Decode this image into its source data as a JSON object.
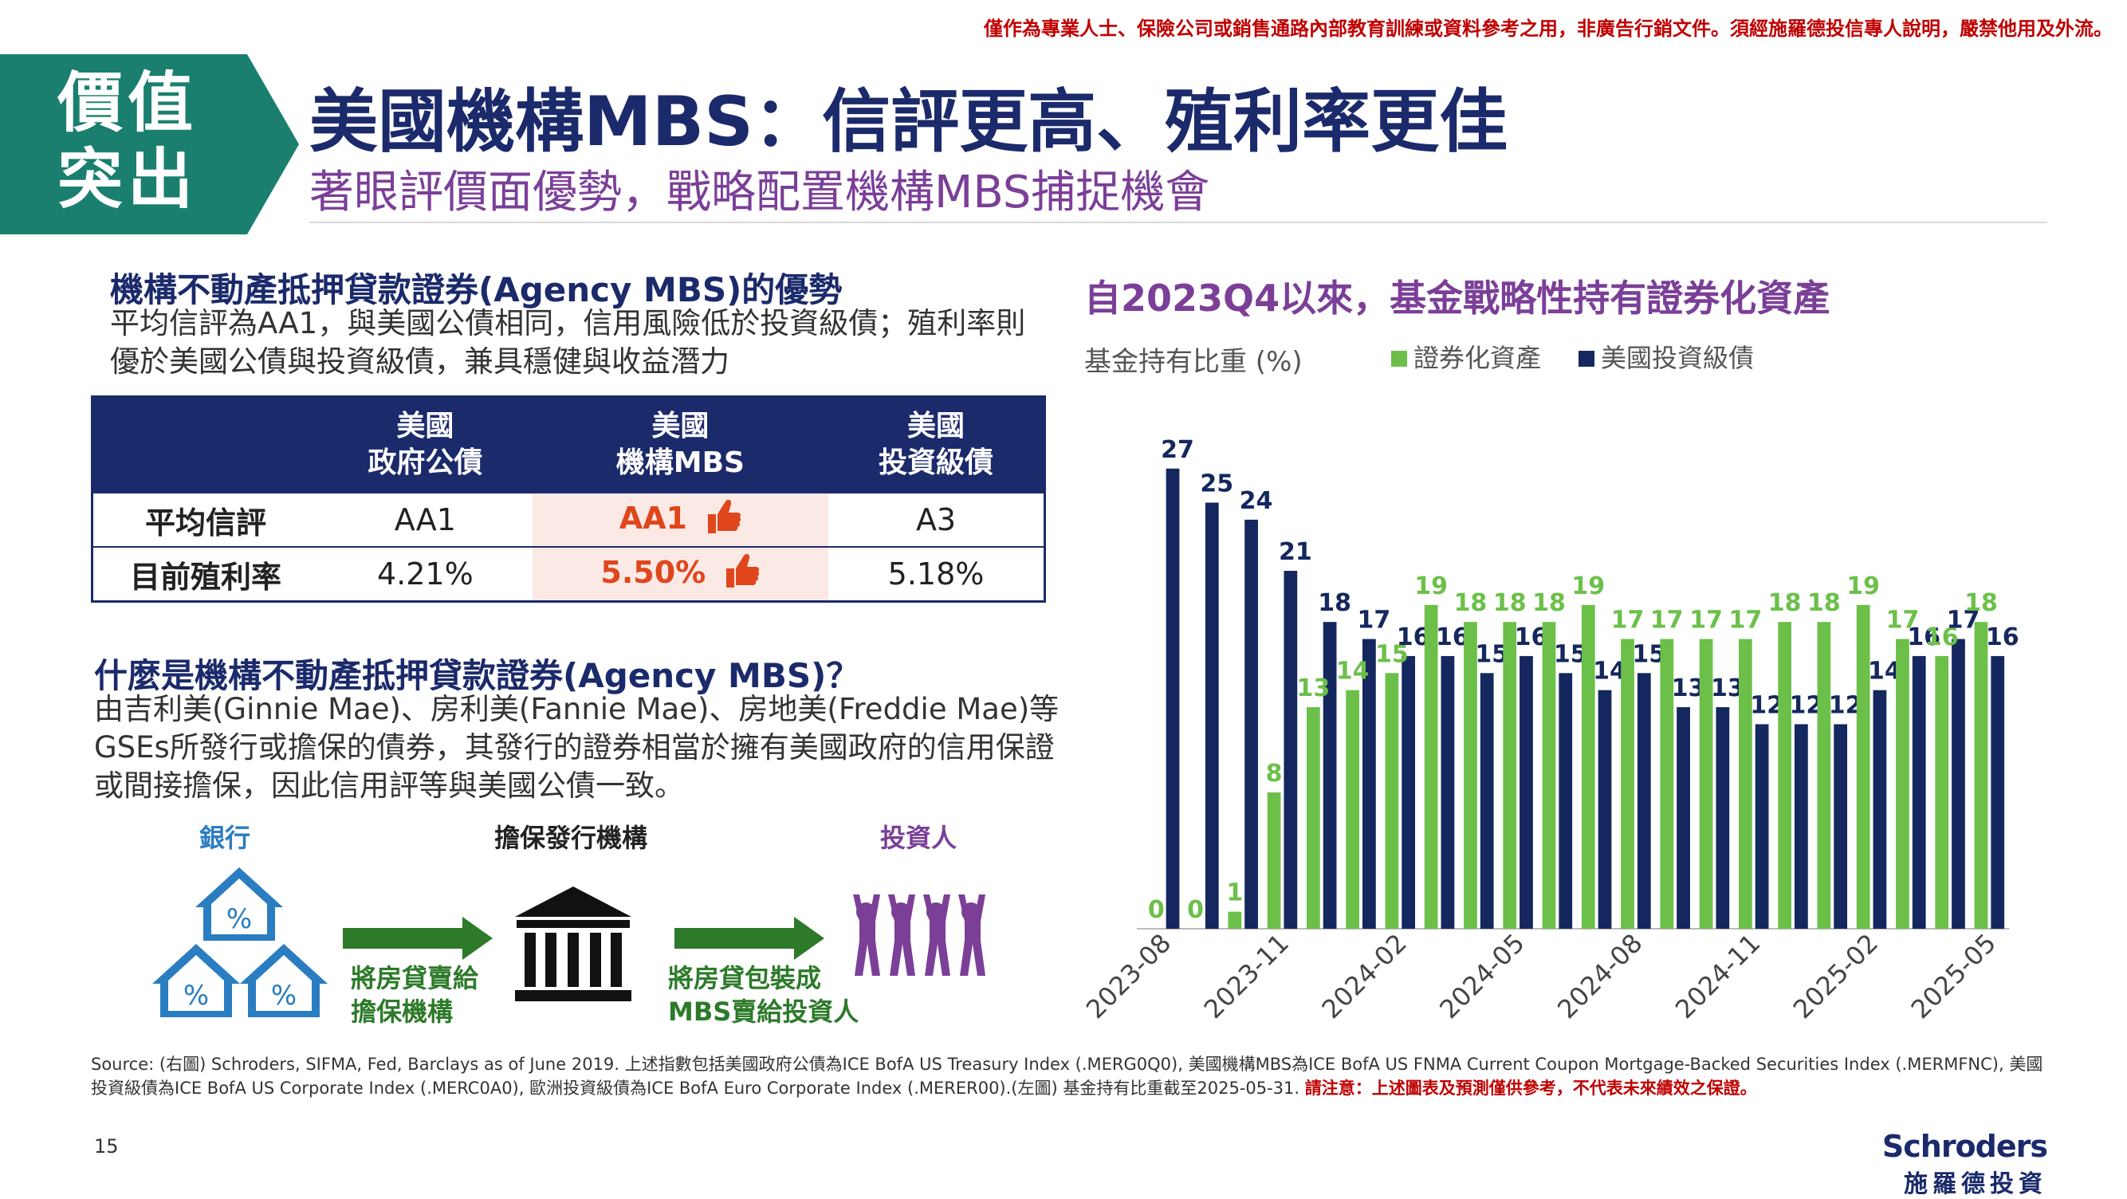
{
  "disclaimer": "僅作為專業人士、保險公司或銷售通路內部教育訓練或資料參考之用，非廣告行銷文件。須經施羅德投信專人說明，嚴禁他用及外流。",
  "badge": {
    "line1": "價值",
    "line2": "突出"
  },
  "title": "美國機構MBS：信評更高、殖利率更佳",
  "subtitle": "著眼評價面優勢，戰略配置機構MBS捕捉機會",
  "advantage": {
    "heading": "機構不動產抵押貸款證券(Agency MBS)的優勢",
    "description": "平均信評為AA1，與美國公債相同，信用風險低於投資級債；殖利率則優於美國公債與投資級債，兼具穩健與收益潛力"
  },
  "table": {
    "columns": [
      {
        "line1": "美國",
        "line2": "政府公債"
      },
      {
        "line1": "美國",
        "line2": "機構MBS"
      },
      {
        "line1": "美國",
        "line2": "投資級債"
      }
    ],
    "rows": [
      {
        "label": "平均信評",
        "values": [
          "AA1",
          "AA1",
          "A3"
        ]
      },
      {
        "label": "目前殖利率",
        "values": [
          "4.21%",
          "5.50%",
          "5.18%"
        ]
      }
    ],
    "highlight_color": "#e0461c"
  },
  "what": {
    "heading": "什麼是機構不動產抵押貸款證券(Agency MBS)？",
    "description": "由吉利美(Ginnie Mae)、房利美(Fannie Mae)、房地美(Freddie Mae)等GSEs所發行或擔保的債券，其發行的證券相當於擁有美國政府的信用保證或間接擔保，因此信用評等與美國公債一致。"
  },
  "flow": {
    "bank_label": "銀行",
    "issuer_label": "擔保發行機構",
    "investor_label": "投資人",
    "arrow1": {
      "line1": "將房貸賣給",
      "line2": "擔保機構"
    },
    "arrow2": {
      "line1": "將房貸包裝成",
      "line2": "MBS賣給投資人"
    },
    "percent_symbol": "%"
  },
  "chart_title": "自2023Q4以來，基金戰略性持有證券化資產",
  "chart_data": {
    "type": "bar",
    "ylabel": "基金持有比重 (%)",
    "ylim": [
      0,
      29
    ],
    "grid": false,
    "legend_position": "top",
    "x_tick_labels": [
      "2023-08",
      "2023-11",
      "2024-02",
      "2024-05",
      "2024-08",
      "2024-11",
      "2025-02",
      "2025-05"
    ],
    "categories": [
      "2023-08",
      "2023-09",
      "2023-10",
      "2023-11",
      "2023-12",
      "2024-01",
      "2024-02",
      "2024-03",
      "2024-04",
      "2024-05",
      "2024-06",
      "2024-07",
      "2024-08",
      "2024-09",
      "2024-10",
      "2024-11",
      "2024-12",
      "2025-01",
      "2025-02",
      "2025-03",
      "2025-04",
      "2025-05"
    ],
    "series": [
      {
        "name": "證券化資產",
        "color": "#6cc04a",
        "values": [
          0,
          0,
          1,
          8,
          13,
          14,
          15,
          19,
          18,
          18,
          18,
          19,
          17,
          17,
          17,
          17,
          18,
          18,
          19,
          17,
          16,
          18
        ]
      },
      {
        "name": "美國投資級債",
        "color": "#14275e",
        "values": [
          27,
          25,
          24,
          21,
          18,
          17,
          16,
          16,
          15,
          16,
          15,
          14,
          15,
          13,
          13,
          12,
          12,
          12,
          14,
          16,
          17,
          16
        ]
      }
    ]
  },
  "source_note": "Source: (右圖) Schroders, SIFMA, Fed, Barclays as of June 2019. 上述指數包括美國政府公債為ICE BofA US Treasury Index (.MERG0Q0), 美國機構MBS為ICE BofA US FNMA Current Coupon Mortgage-Backed Securities Index (.MERMFNC), 美國投資級債為ICE BofA US Corporate Index (.MERC0A0), 歐洲投資級債為ICE BofA Euro Corporate Index (.MERER00).(左圖) 基金持有比重截至2025-05-31. ",
  "source_warning": "請注意：上述圖表及預測僅供參考，不代表未來績效之保證。",
  "page_number": "15",
  "brand": {
    "name": "Schroders",
    "name_zh": "施羅德投資"
  },
  "colors": {
    "navy": "#1b2a6b",
    "teal": "#1a7f6f",
    "purple": "#7b3f98",
    "blue": "#2a7dc0",
    "green": "#2d7a2a",
    "red": "#c00000"
  }
}
